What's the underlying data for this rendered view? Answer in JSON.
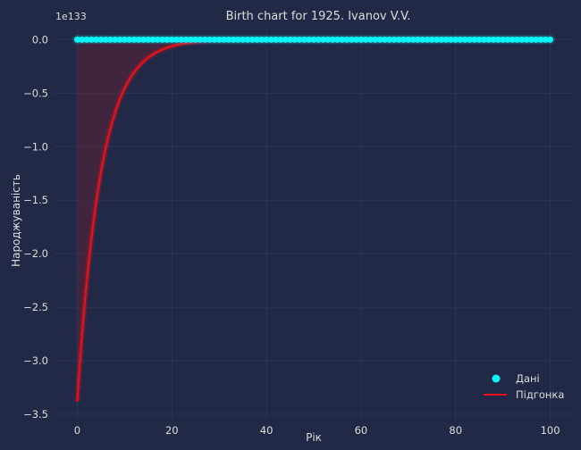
{
  "chart_data": {
    "type": "scatter",
    "title": "Birth chart for 1925. Ivanov V.V.",
    "xlabel": "Рік",
    "ylabel": "Народжуваність",
    "y_offset_label": "1e133",
    "xlim": [
      -5,
      105
    ],
    "ylim": [
      -3.55,
      0.12
    ],
    "x_ticks": [
      0,
      20,
      40,
      60,
      80,
      100
    ],
    "x_tick_labels": [
      "0",
      "20",
      "40",
      "60",
      "80",
      "100"
    ],
    "y_ticks": [
      0.0,
      -0.5,
      -1.0,
      -1.5,
      -2.0,
      -2.5,
      -3.0,
      -3.5
    ],
    "y_tick_labels": [
      "0.0",
      "−0.5",
      "−1.0",
      "−1.5",
      "−2.0",
      "−2.5",
      "−3.0",
      "−3.5"
    ],
    "grid": true,
    "legend_position": "lower-right",
    "series": [
      {
        "name": "Дані",
        "kind": "scatter",
        "color": "#08F7FE",
        "x_start": 0,
        "x_end": 100,
        "x_step": 1,
        "y_value": 0.0
      },
      {
        "name": "Підгонка",
        "kind": "line",
        "color": "#E8101A",
        "fill_color": "#8B1A2A",
        "x_start": 0,
        "x_end": 100,
        "y_at_x0": -3.38,
        "decay_constant": 0.2
      }
    ]
  },
  "colors": {
    "background": "#212946",
    "grid": "#2A3459",
    "text": "#DDDDDD"
  }
}
